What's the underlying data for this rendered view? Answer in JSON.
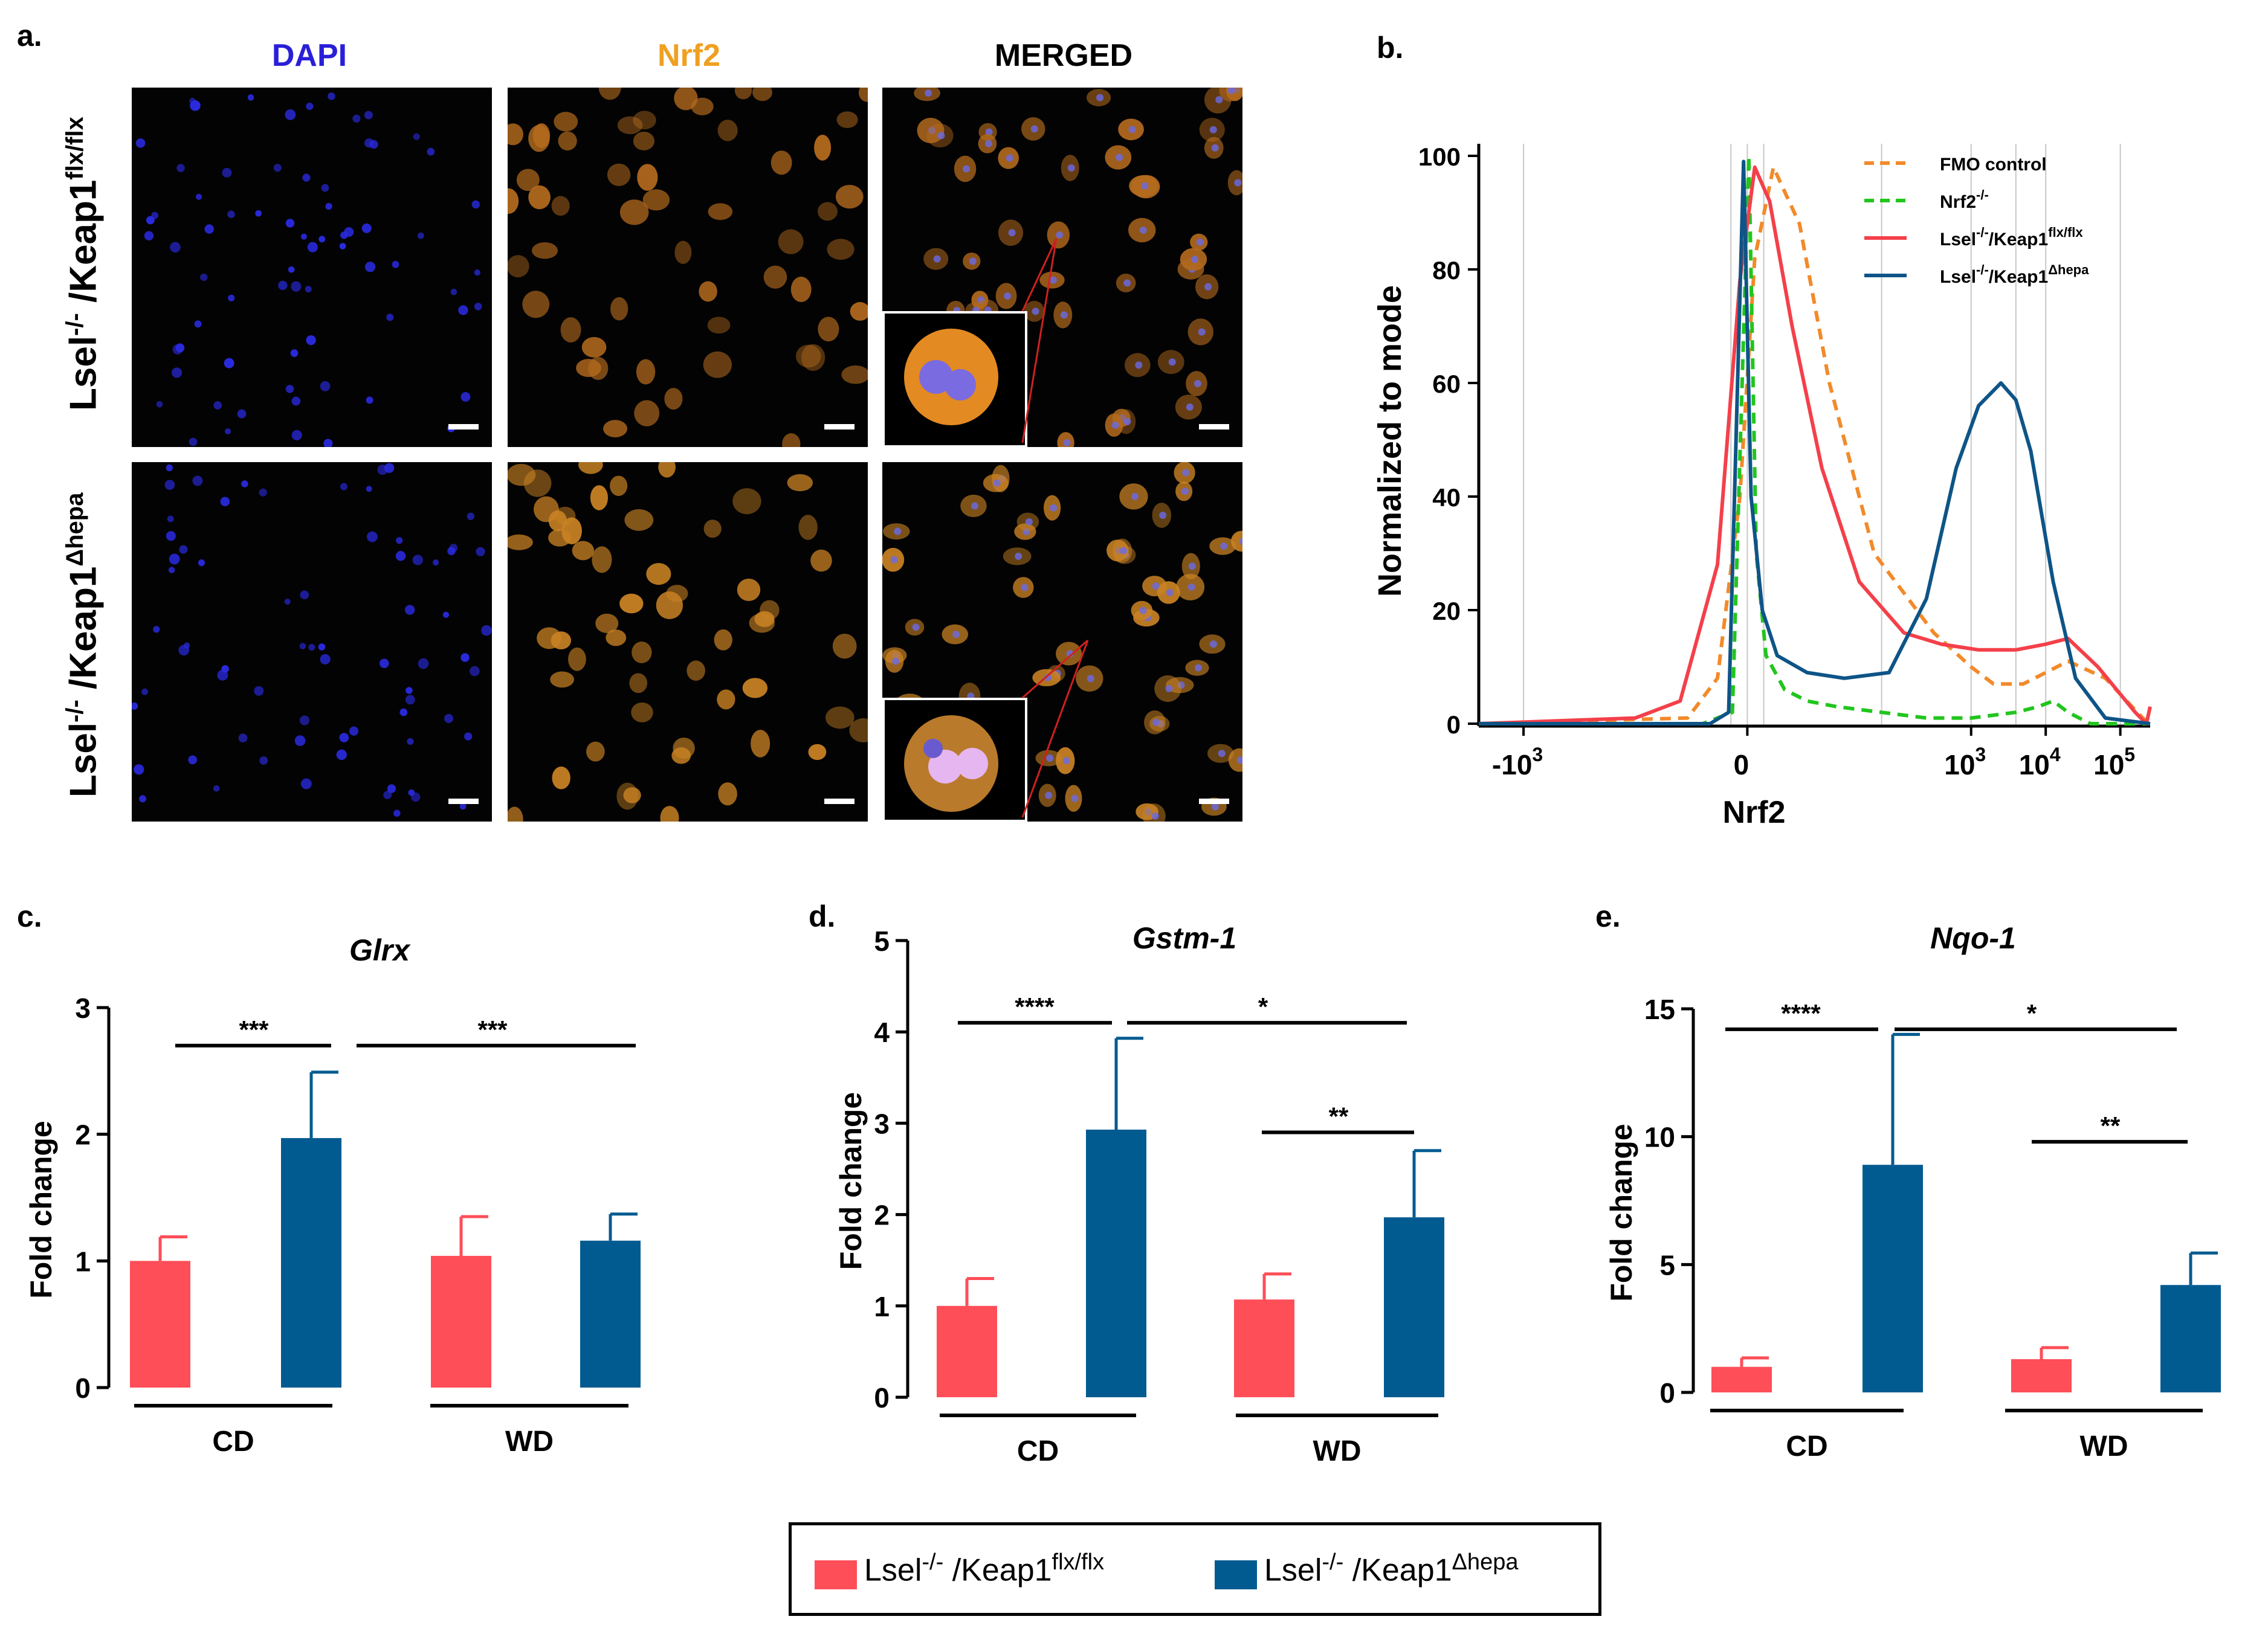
{
  "panel_a": {
    "label": "a.",
    "columns": [
      "DAPI",
      "Nrf2",
      "MERGED"
    ],
    "column_colors": [
      "#2a1fd8",
      "#f0a020",
      "#000000"
    ],
    "rows": [
      {
        "base": "Lsel",
        "sup1": "-/-",
        "mid": " /Keap1",
        "sup2": "flx/flx"
      },
      {
        "base": "Lsel",
        "sup1": "-/-",
        "mid": " /Keap1",
        "sup2": "Δhepa"
      }
    ]
  },
  "panel_b": {
    "label": "b."
  },
  "panel_c": {
    "label": "c."
  },
  "panel_d": {
    "label": "d."
  },
  "panel_e": {
    "label": "e."
  },
  "legend": {
    "entries": [
      {
        "base": "Lsel",
        "sup1": "-/-",
        "mid": " /Keap1",
        "sup2": "flx/flx",
        "color": "#fe4e58"
      },
      {
        "base": "Lsel",
        "sup1": "-/-",
        "mid": " /Keap1",
        "sup2": "Δhepa",
        "color": "#025b90"
      }
    ]
  },
  "chart_data": [
    {
      "id": "b",
      "type": "line",
      "xlabel": "Nrf2",
      "ylabel": "Normalized to mode",
      "ylim": [
        0,
        100
      ],
      "yticks": [
        "0",
        "20",
        "40",
        "60",
        "80",
        "100"
      ],
      "xticks": [
        {
          "base": "-10",
          "exp": "3"
        },
        {
          "base": "0",
          "exp": ""
        },
        {
          "base": "10",
          "exp": "3"
        },
        {
          "base": "10",
          "exp": "4"
        },
        {
          "base": "10",
          "exp": "5"
        }
      ],
      "xtick_positions": [
        -3.0,
        0.0,
        3.0,
        4.0,
        5.0
      ],
      "xlim": [
        -3.6,
        5.4
      ],
      "series": [
        {
          "name": "FMO control",
          "sup": "",
          "color": "#f28a2a",
          "dash": true,
          "x": [
            -3.6,
            -0.8,
            -0.4,
            -0.1,
            0.1,
            0.35,
            0.7,
            1.1,
            1.7,
            2.5,
            3.0,
            3.3,
            3.7,
            4.0,
            4.3,
            4.8,
            5.3,
            5.4
          ],
          "y": [
            0,
            1,
            8,
            40,
            82,
            98,
            88,
            60,
            30,
            16,
            10,
            7,
            7,
            9,
            11,
            8,
            1,
            0
          ]
        },
        {
          "name": "Nrf2",
          "sup": "-/-",
          "color": "#22c51e",
          "dash": true,
          "x": [
            -3.6,
            -0.6,
            -0.2,
            0.02,
            0.12,
            0.25,
            0.5,
            0.8,
            1.2,
            1.8,
            2.4,
            3.0,
            3.6,
            3.9,
            4.1,
            4.3,
            4.6,
            5.4
          ],
          "y": [
            0,
            0,
            2,
            100,
            30,
            12,
            6,
            4,
            3,
            2,
            1,
            1,
            2,
            3,
            4,
            2,
            0,
            0
          ]
        },
        {
          "name": "Lsel",
          "sup": "-/-",
          "mid": "/Keap1",
          "sup2": "flx/flx",
          "color": "#f4404a",
          "dash": false,
          "x": [
            -3.6,
            -1.5,
            -0.9,
            -0.4,
            -0.1,
            0.1,
            0.3,
            0.6,
            1.0,
            1.5,
            2.1,
            2.6,
            3.1,
            3.6,
            4.0,
            4.3,
            4.7,
            5.2,
            5.35,
            5.4
          ],
          "y": [
            0,
            1,
            4,
            28,
            78,
            98,
            92,
            70,
            45,
            25,
            16,
            14,
            13,
            13,
            14,
            15,
            10,
            2,
            0,
            3
          ]
        },
        {
          "name": "Lsel",
          "sup": "-/-",
          "mid": "/Keap1",
          "sup2": "Δhepa",
          "color": "#0e5487",
          "dash": false,
          "x": [
            -3.6,
            -0.5,
            -0.25,
            -0.05,
            0.05,
            0.2,
            0.4,
            0.8,
            1.3,
            1.9,
            2.4,
            2.8,
            3.1,
            3.4,
            3.6,
            3.8,
            4.1,
            4.4,
            4.8,
            5.4
          ],
          "y": [
            0,
            0,
            2,
            99,
            40,
            20,
            12,
            9,
            8,
            9,
            22,
            45,
            56,
            60,
            57,
            48,
            25,
            8,
            1,
            0
          ]
        }
      ]
    },
    {
      "id": "c",
      "type": "bar",
      "title": "Glrx",
      "ylabel": "Fold change",
      "ylim": [
        0,
        3
      ],
      "yticks": [
        "0",
        "1",
        "2",
        "3"
      ],
      "groups": [
        "CD",
        "WD"
      ],
      "values": [
        1.0,
        1.97,
        1.04,
        1.16
      ],
      "errors": [
        0.19,
        0.52,
        0.31,
        0.21
      ],
      "significance": [
        {
          "label": "***",
          "level": 2.7
        },
        {
          "label": "***",
          "level": 2.7
        }
      ]
    },
    {
      "id": "d",
      "type": "bar",
      "title": "Gstm-1",
      "ylabel": "Fold change",
      "ylim": [
        0,
        5
      ],
      "yticks": [
        "0",
        "1",
        "2",
        "3",
        "4",
        "5"
      ],
      "groups": [
        "CD",
        "WD"
      ],
      "values": [
        1.0,
        2.93,
        1.07,
        1.97
      ],
      "errors": [
        0.3,
        1.0,
        0.28,
        0.73
      ],
      "significance": [
        {
          "label": "****",
          "level": 4.1
        },
        {
          "label": "*",
          "level": 4.1
        },
        {
          "label": "**",
          "level": 2.9
        }
      ]
    },
    {
      "id": "e",
      "type": "bar",
      "title": "Nqo-1",
      "ylabel": "Fold change",
      "ylim": [
        0,
        15
      ],
      "yticks": [
        "0",
        "5",
        "10",
        "15"
      ],
      "groups": [
        "CD",
        "WD"
      ],
      "values": [
        1.0,
        8.9,
        1.3,
        4.2
      ],
      "errors": [
        0.35,
        5.1,
        0.45,
        1.25
      ],
      "significance": [
        {
          "label": "****",
          "level": 14.2
        },
        {
          "label": "*",
          "level": 14.2
        },
        {
          "label": "**",
          "level": 9.8
        }
      ]
    }
  ]
}
